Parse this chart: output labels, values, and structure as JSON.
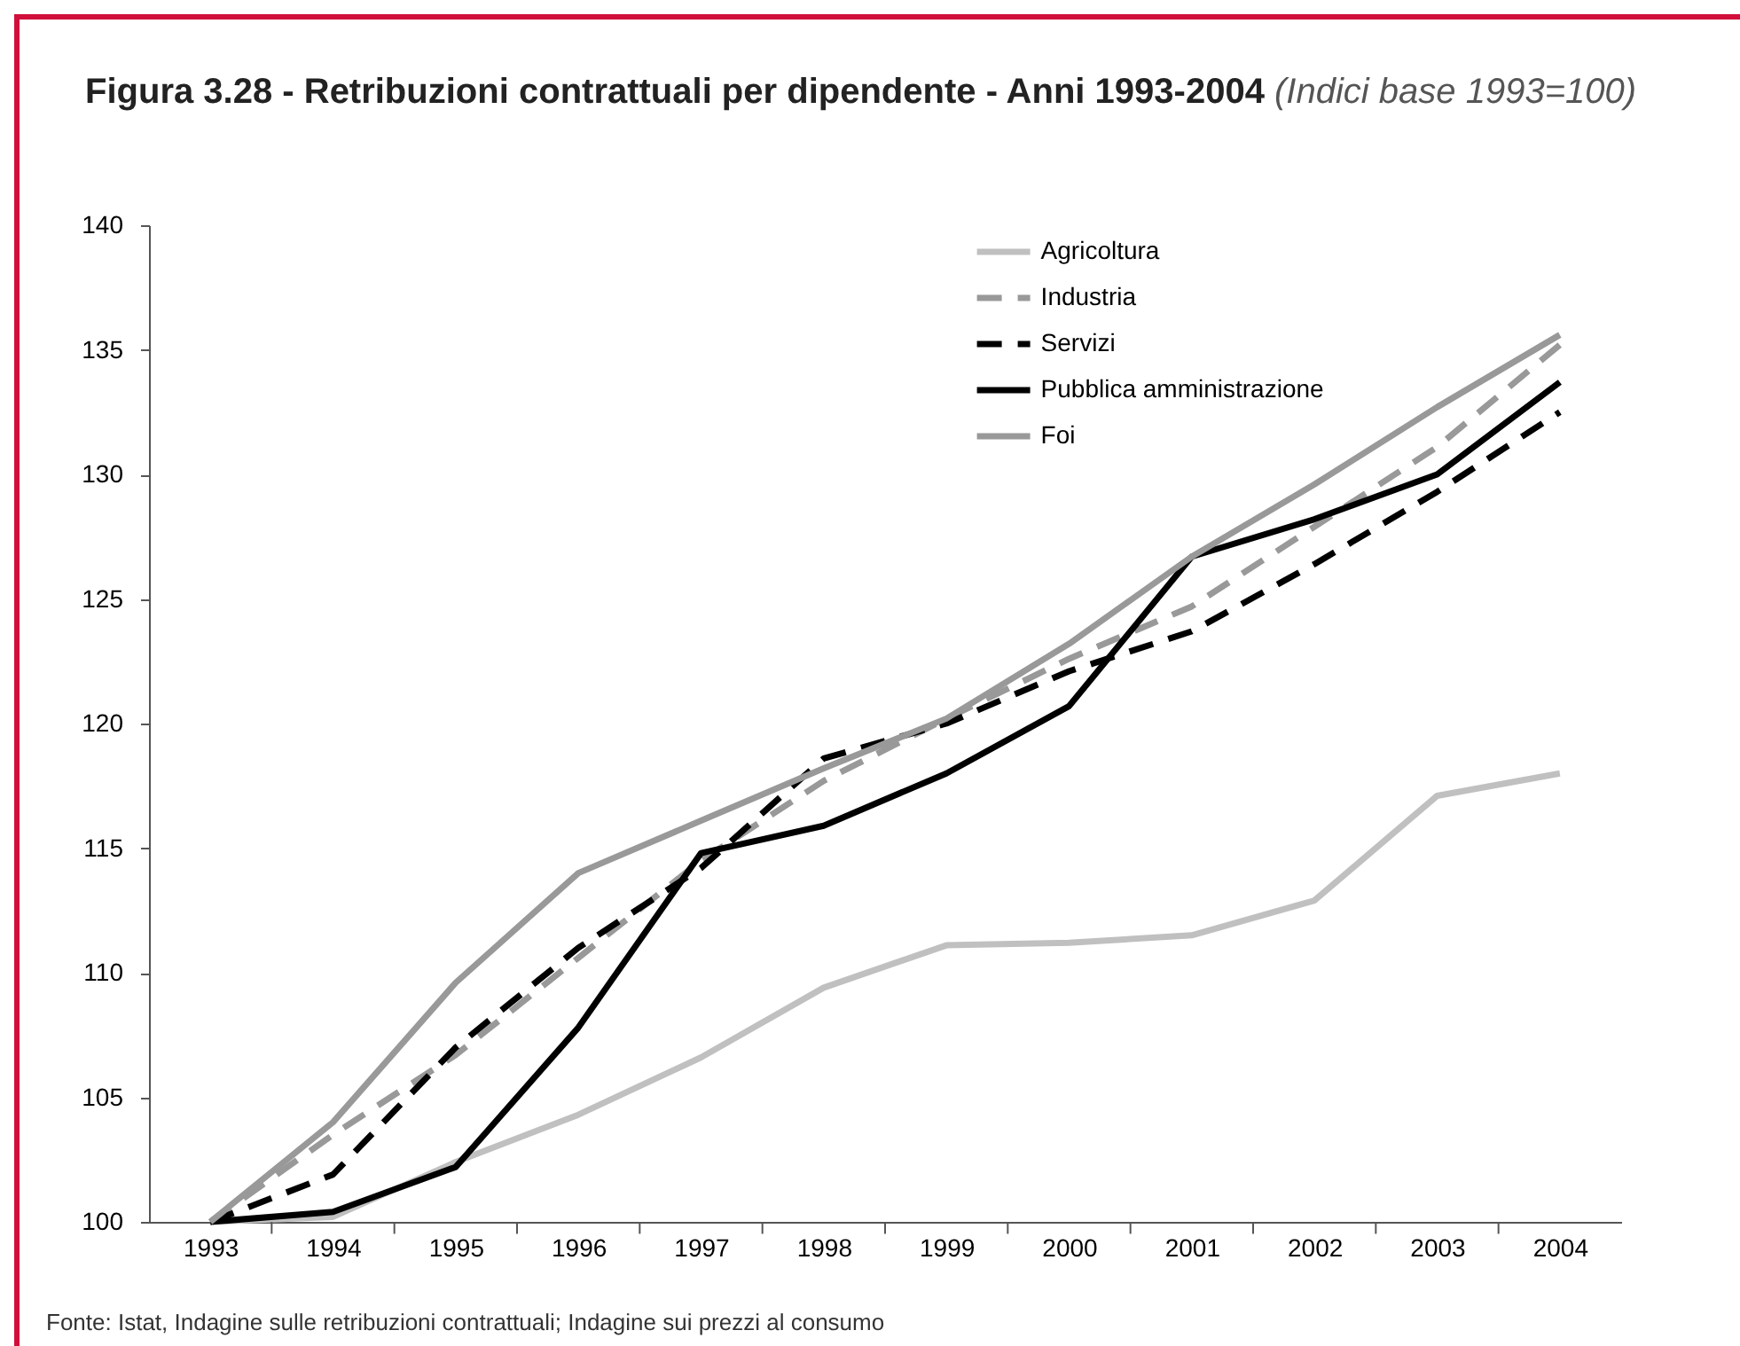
{
  "chart_data": {
    "type": "line",
    "title": "Figura 3.28 - Retribuzioni contrattuali per dipendente - Anni 1993-2004",
    "subtitle": "(Indici base 1993=100)",
    "categories": [
      "1993",
      "1994",
      "1995",
      "1996",
      "1997",
      "1998",
      "1999",
      "2000",
      "2001",
      "2002",
      "2003",
      "2004"
    ],
    "series": [
      {
        "name": "Agricoltura",
        "color": "#c0c0c0",
        "line_style": "solid",
        "values": [
          100,
          100.2,
          102.4,
          104.3,
          106.6,
          109.4,
          111.1,
          111.2,
          111.5,
          112.9,
          117.1,
          118.0
        ]
      },
      {
        "name": "Industria",
        "color": "#999999",
        "line_style": "dashed",
        "values": [
          100,
          103.5,
          106.7,
          110.6,
          114.5,
          117.7,
          120.2,
          122.6,
          124.7,
          127.9,
          131.1,
          135.2
        ]
      },
      {
        "name": "Servizi",
        "color": "#000000",
        "line_style": "dashed",
        "values": [
          100,
          101.9,
          107.0,
          111.0,
          114.2,
          118.6,
          120.0,
          122.1,
          123.7,
          126.4,
          129.3,
          132.5
        ]
      },
      {
        "name": "Pubblica amministrazione",
        "color": "#000000",
        "line_style": "solid",
        "values": [
          100,
          100.4,
          102.2,
          107.8,
          114.8,
          115.9,
          118.0,
          120.7,
          126.7,
          128.2,
          130.0,
          133.7
        ]
      },
      {
        "name": "Foi",
        "color": "#999999",
        "line_style": "solid",
        "values": [
          100,
          104.0,
          109.6,
          114.0,
          116.1,
          118.2,
          120.2,
          123.2,
          126.7,
          129.6,
          132.7,
          135.6
        ]
      }
    ],
    "ylim": [
      100,
      140
    ],
    "yticks": [
      100,
      105,
      110,
      115,
      120,
      125,
      130,
      135,
      140
    ],
    "grid": false,
    "legend": "top",
    "annotations": [
      "Fonte: Istat, Indagine sulle retribuzioni contrattuali; Indagine sui prezzi al consumo"
    ]
  }
}
